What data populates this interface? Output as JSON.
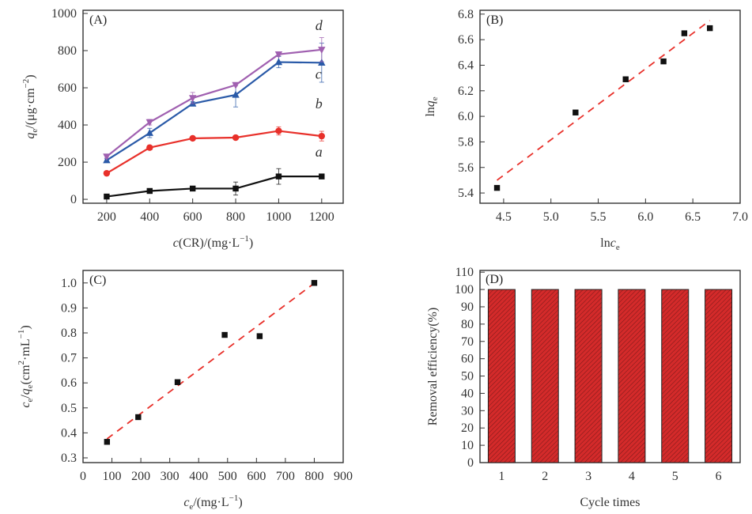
{
  "chart_data": [
    {
      "panel": "A",
      "type": "line",
      "title": "",
      "panel_label": "(A)",
      "xlabel_parts": [
        {
          "t": "c",
          "i": true
        },
        {
          "t": "(CR)/(mg·L",
          "i": false
        },
        {
          "t": "−1",
          "sup": true
        },
        {
          "t": ")",
          "i": false
        }
      ],
      "ylabel_parts": [
        {
          "t": "q",
          "i": true
        },
        {
          "t": "e",
          "sub": true
        },
        {
          "t": "/(μg·cm",
          "i": false
        },
        {
          "t": "−2",
          "sup": true
        },
        {
          "t": ")",
          "i": false
        }
      ],
      "xlim": [
        90,
        1300
      ],
      "ylim": [
        -21,
        1017
      ],
      "xticks": [
        200,
        400,
        600,
        800,
        1000,
        1200
      ],
      "yticks": [
        0,
        200,
        400,
        600,
        800,
        1000
      ],
      "x": [
        200,
        400,
        600,
        800,
        1000,
        1200
      ],
      "series": [
        {
          "name": "a",
          "color": "#111111",
          "marker": "square",
          "values": [
            15,
            45,
            58,
            58,
            123,
            123
          ],
          "errors": [
            8,
            5,
            5,
            35,
            42,
            5
          ]
        },
        {
          "name": "b",
          "color": "#e8302a",
          "marker": "circle",
          "values": [
            140,
            278,
            328,
            332,
            368,
            340
          ],
          "errors": [
            5,
            12,
            5,
            5,
            22,
            26
          ]
        },
        {
          "name": "c",
          "color": "#2a5aa8",
          "marker": "triangle-up",
          "values": [
            210,
            357,
            515,
            562,
            738,
            735
          ],
          "errors": [
            8,
            25,
            10,
            65,
            30,
            105
          ]
        },
        {
          "name": "d",
          "color": "#a060b0",
          "marker": "triangle-down",
          "values": [
            230,
            415,
            545,
            615,
            780,
            805
          ],
          "errors": [
            8,
            15,
            30,
            5,
            8,
            65
          ]
        }
      ],
      "grid": false
    },
    {
      "panel": "B",
      "type": "scatter",
      "title": "",
      "panel_label": "(B)",
      "xlabel_parts": [
        {
          "t": "ln",
          "i": false
        },
        {
          "t": "c",
          "i": true
        },
        {
          "t": "e",
          "sub": true
        }
      ],
      "ylabel_parts": [
        {
          "t": "ln",
          "i": false
        },
        {
          "t": "q",
          "i": true
        },
        {
          "t": "e",
          "sub": true
        }
      ],
      "xlim": [
        4.25,
        7.0
      ],
      "ylim": [
        5.32,
        6.83
      ],
      "xticks": [
        "4.5",
        "5.0",
        "5.5",
        "6.0",
        "6.5",
        "7.0"
      ],
      "yticks": [
        "5.4",
        "5.6",
        "5.8",
        "6.0",
        "6.2",
        "6.4",
        "6.6",
        "6.8"
      ],
      "points": [
        {
          "x": 4.43,
          "y": 5.44
        },
        {
          "x": 5.26,
          "y": 6.03
        },
        {
          "x": 5.79,
          "y": 6.29
        },
        {
          "x": 6.19,
          "y": 6.43
        },
        {
          "x": 6.41,
          "y": 6.65
        },
        {
          "x": 6.68,
          "y": 6.69
        }
      ],
      "fit_line": {
        "color": "#e8302a",
        "style": "dashed",
        "x": [
          4.43,
          6.68
        ],
        "y": [
          5.5,
          6.75
        ]
      },
      "grid": false
    },
    {
      "panel": "C",
      "type": "scatter",
      "title": "",
      "panel_label": "(C)",
      "xlabel_parts": [
        {
          "t": "c",
          "i": true
        },
        {
          "t": "e",
          "sub": true
        },
        {
          "t": "/(mg·L",
          "i": false
        },
        {
          "t": "−1",
          "sup": true
        },
        {
          "t": ")",
          "i": false
        }
      ],
      "ylabel_parts": [
        {
          "t": "c",
          "i": true
        },
        {
          "t": "e",
          "sub": true
        },
        {
          "t": "/",
          "i": false
        },
        {
          "t": "q",
          "i": true
        },
        {
          "t": "e",
          "sub": true
        },
        {
          "t": "(cm",
          "i": false
        },
        {
          "t": "2",
          "sup": true
        },
        {
          "t": "·mL",
          "i": false
        },
        {
          "t": "−1",
          "sup": true
        },
        {
          "t": ")",
          "i": false
        }
      ],
      "xlim": [
        0,
        900
      ],
      "ylim": [
        0.281,
        1.05
      ],
      "xticks": [
        "0",
        "100",
        "200",
        "300",
        "400",
        "500",
        "600",
        "700",
        "800",
        "900"
      ],
      "yticks": [
        "0.3",
        "0.4",
        "0.5",
        "0.6",
        "0.7",
        "0.8",
        "0.9",
        "1.0"
      ],
      "points": [
        {
          "x": 83,
          "y": 0.364
        },
        {
          "x": 191,
          "y": 0.463
        },
        {
          "x": 327,
          "y": 0.603
        },
        {
          "x": 490,
          "y": 0.792
        },
        {
          "x": 611,
          "y": 0.787
        },
        {
          "x": 800,
          "y": 1.0
        }
      ],
      "fit_line": {
        "color": "#e8302a",
        "style": "dashed",
        "x": [
          83,
          798
        ],
        "y": [
          0.376,
          0.997
        ]
      },
      "grid": false
    },
    {
      "panel": "D",
      "type": "bar",
      "title": "",
      "panel_label": "(D)",
      "xlabel": "Cycle times",
      "ylabel": "Removal efficiency(%)",
      "categories": [
        "1",
        "2",
        "3",
        "4",
        "5",
        "6"
      ],
      "values": [
        100,
        100,
        100,
        100,
        100,
        100
      ],
      "ylim": [
        0,
        111
      ],
      "yticks": [
        "0",
        "10",
        "20",
        "30",
        "40",
        "50",
        "60",
        "70",
        "80",
        "90",
        "100",
        "110"
      ],
      "bar_color": "#d42a2a",
      "bar_pattern": "diagonal-hatch",
      "grid": false
    }
  ]
}
